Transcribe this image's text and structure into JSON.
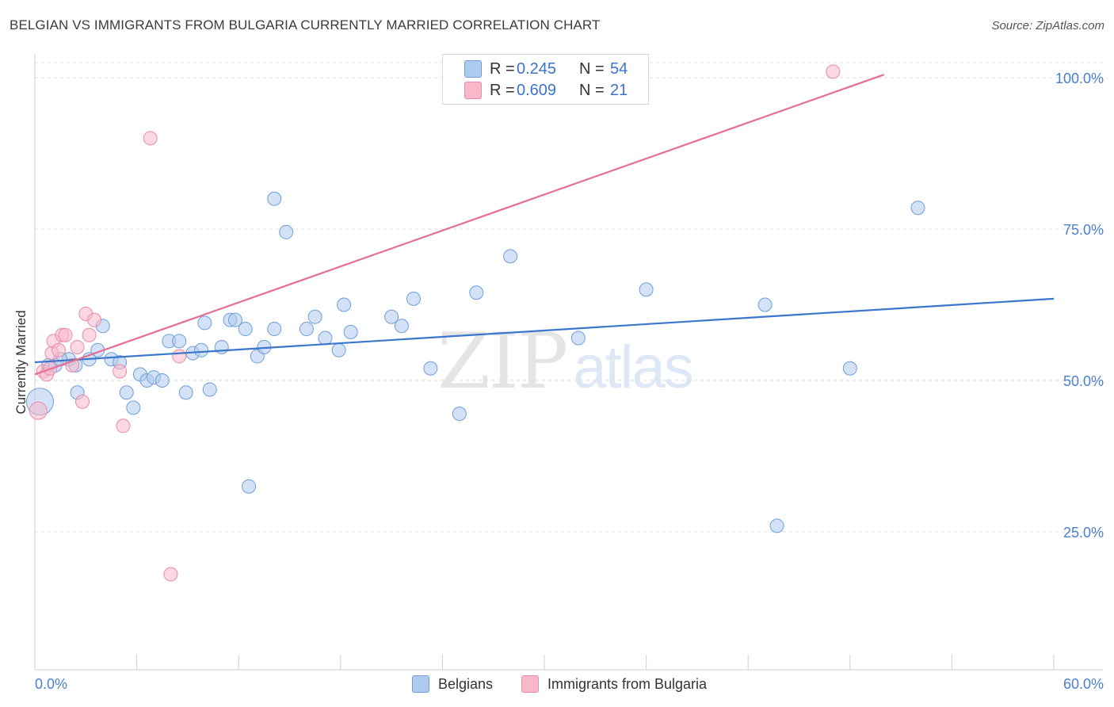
{
  "title": "BELGIAN VS IMMIGRANTS FROM BULGARIA CURRENTLY MARRIED CORRELATION CHART",
  "source": "Source: ZipAtlas.com",
  "watermark": {
    "part1": "ZIP",
    "part2": "atlas"
  },
  "legend": {
    "r_label": "R =",
    "n_label": "N =",
    "entries": [
      {
        "r": "0.245",
        "n": "54",
        "color": "#aecbef"
      },
      {
        "r": "0.609",
        "n": "21",
        "color": "#f7b8ca"
      }
    ]
  },
  "bottom_legend": [
    "Belgians",
    "Immigrants from Bulgaria"
  ],
  "colors": {
    "belgians_fill": "#aecbef",
    "belgians_stroke": "#6f9fd8",
    "belgians_line": "#3a77cc",
    "bulgaria_fill": "#f7b8ca",
    "bulgaria_stroke": "#e98aa6",
    "bulgaria_line": "#e56e92",
    "tick_label": "#4a7fd0",
    "grid": "#dedede"
  },
  "chart_data": {
    "type": "scatter",
    "title": "BELGIAN VS IMMIGRANTS FROM BULGARIA CURRENTLY MARRIED CORRELATION CHART",
    "xlabel": "",
    "ylabel": "Currently Married",
    "xlim": [
      0,
      60
    ],
    "ylim": [
      0,
      105
    ],
    "x_tick_labels": [
      "0.0%",
      "60.0%"
    ],
    "y_ticks": [
      25,
      50,
      75,
      100
    ],
    "y_tick_labels": [
      "25.0%",
      "50.0%",
      "75.0%",
      "100.0%"
    ],
    "grid": true,
    "legend_position": "top-center",
    "series": [
      {
        "name": "Belgians",
        "r": 0.245,
        "n": 54,
        "trend": {
          "x": [
            0,
            60
          ],
          "y": [
            53.0,
            63.5
          ]
        },
        "points": [
          [
            0.3,
            46.5
          ],
          [
            0.8,
            52.5
          ],
          [
            1.2,
            52.5
          ],
          [
            2.0,
            53.5
          ],
          [
            2.4,
            52.5
          ],
          [
            2.5,
            48.0
          ],
          [
            3.2,
            53.5
          ],
          [
            3.7,
            55.0
          ],
          [
            4.0,
            59.0
          ],
          [
            4.5,
            53.5
          ],
          [
            5.0,
            53.0
          ],
          [
            5.4,
            48.0
          ],
          [
            5.8,
            45.5
          ],
          [
            6.2,
            51.0
          ],
          [
            6.6,
            50.0
          ],
          [
            7.0,
            50.5
          ],
          [
            7.5,
            50.0
          ],
          [
            7.9,
            56.5
          ],
          [
            8.5,
            56.5
          ],
          [
            8.9,
            48.0
          ],
          [
            9.3,
            54.5
          ],
          [
            9.8,
            55.0
          ],
          [
            10.0,
            59.5
          ],
          [
            10.3,
            48.5
          ],
          [
            11.0,
            55.5
          ],
          [
            11.5,
            60.0
          ],
          [
            11.8,
            60.0
          ],
          [
            12.4,
            58.5
          ],
          [
            12.6,
            32.5
          ],
          [
            13.1,
            54.0
          ],
          [
            13.5,
            55.5
          ],
          [
            14.1,
            58.5
          ],
          [
            14.1,
            80.0
          ],
          [
            14.8,
            74.5
          ],
          [
            16.0,
            58.5
          ],
          [
            16.5,
            60.5
          ],
          [
            17.1,
            57.0
          ],
          [
            17.9,
            55.0
          ],
          [
            18.2,
            62.5
          ],
          [
            18.6,
            58.0
          ],
          [
            21.0,
            60.5
          ],
          [
            21.6,
            59.0
          ],
          [
            22.3,
            63.5
          ],
          [
            23.3,
            52.0
          ],
          [
            25.0,
            44.5
          ],
          [
            26.0,
            64.5
          ],
          [
            28.0,
            70.5
          ],
          [
            32.0,
            57.0
          ],
          [
            36.0,
            65.0
          ],
          [
            43.0,
            62.5
          ],
          [
            43.7,
            26.0
          ],
          [
            48.0,
            52.0
          ],
          [
            52.0,
            78.5
          ],
          [
            1.5,
            53.5
          ]
        ]
      },
      {
        "name": "Immigrants from Bulgaria",
        "r": 0.609,
        "n": 21,
        "trend": {
          "x": [
            0,
            50
          ],
          "y": [
            51.0,
            100.5
          ]
        },
        "points": [
          [
            0.2,
            45.0
          ],
          [
            0.5,
            51.5
          ],
          [
            0.7,
            51.0
          ],
          [
            1.0,
            54.5
          ],
          [
            1.1,
            56.5
          ],
          [
            1.4,
            55.0
          ],
          [
            1.6,
            57.5
          ],
          [
            1.8,
            57.5
          ],
          [
            2.2,
            52.5
          ],
          [
            2.5,
            55.5
          ],
          [
            2.8,
            46.5
          ],
          [
            3.0,
            61.0
          ],
          [
            3.2,
            57.5
          ],
          [
            3.5,
            60.0
          ],
          [
            5.0,
            51.5
          ],
          [
            5.2,
            42.5
          ],
          [
            6.8,
            90.0
          ],
          [
            8.0,
            18.0
          ],
          [
            8.5,
            54.0
          ],
          [
            47.0,
            101.0
          ],
          [
            0.9,
            52.0
          ]
        ]
      }
    ]
  }
}
